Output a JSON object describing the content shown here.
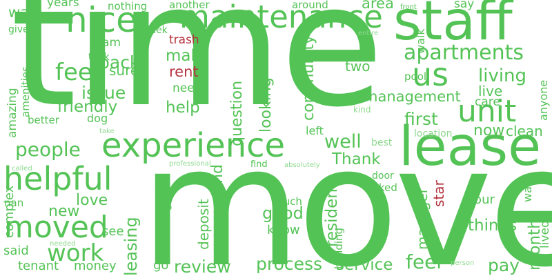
{
  "palette": {
    "green": "#54c356",
    "light_green": "#8fd98f",
    "red": "#b5323e",
    "background": "#ffffff"
  },
  "words": [
    "time",
    "move",
    "staff",
    "lease",
    "maintenance",
    "experience",
    "nice",
    "helpful",
    "apartments",
    "unit",
    "us",
    "moved",
    "fee",
    "people",
    "management",
    "work",
    "living",
    "issue",
    "friendly",
    "back",
    "make",
    "help",
    "looking",
    "question",
    "community",
    "well",
    "Thank",
    "first",
    "now",
    "good",
    "process",
    "review",
    "service",
    "feel",
    "pay",
    "things",
    "months",
    "love",
    "new",
    "leasing",
    "recommend",
    "resident",
    "manager",
    "deposit",
    "moving",
    "complex",
    "tenant",
    "money",
    "said",
    "see",
    "go",
    "know",
    "much",
    "door",
    "asked",
    "tour",
    "want",
    "lived",
    "live",
    "care",
    "kind",
    "location",
    "clean",
    "anyone",
    "left",
    "best",
    "two",
    "rent",
    "trash",
    "star",
    "sure",
    "need",
    "team",
    "took",
    "dog",
    "better",
    "amenities",
    "amazing",
    "way",
    "give",
    "years",
    "nothing",
    "another",
    "around",
    "area",
    "front",
    "say",
    "week",
    "walk",
    "entire",
    "pool",
    "called",
    "professional",
    "absolutely",
    "find",
    "take",
    "nan",
    "needed",
    "person",
    "building"
  ]
}
